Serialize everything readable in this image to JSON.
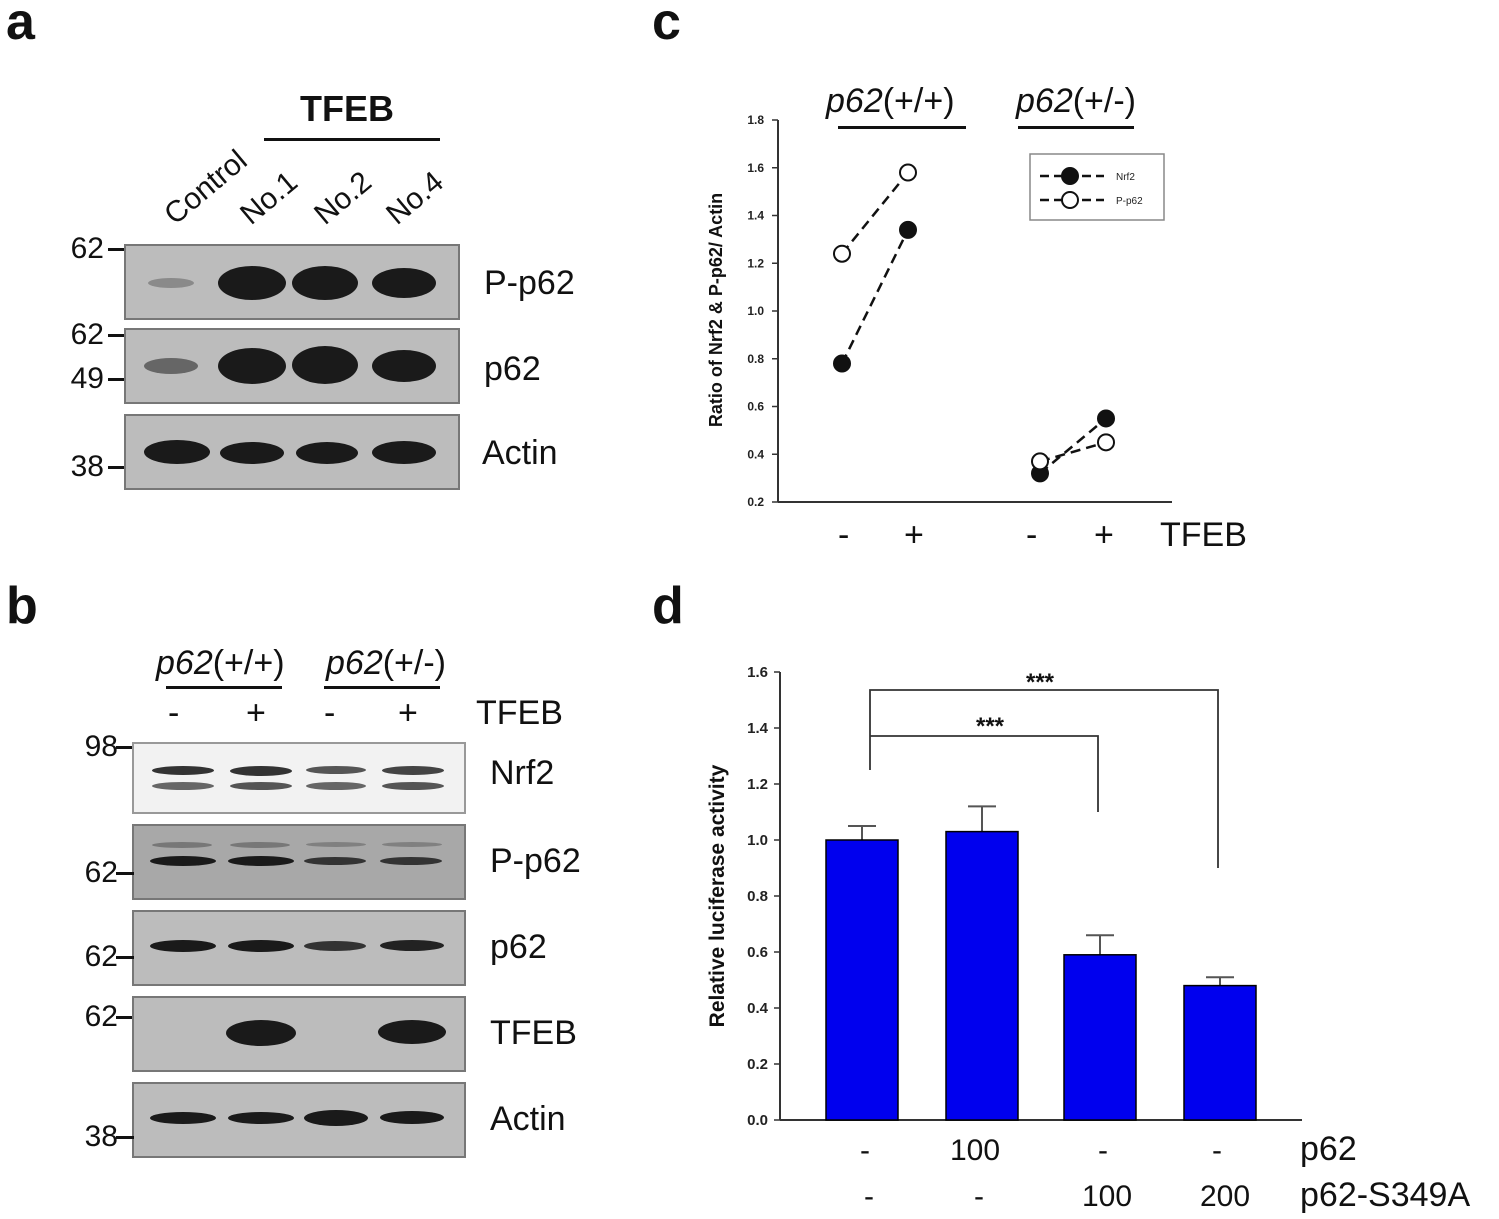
{
  "panel_a": {
    "letter": "a",
    "group_label": "TFEB",
    "lanes": [
      "Control",
      "No.1",
      "No.2",
      "No.4"
    ],
    "mw_markers": [
      "62",
      "62",
      "49",
      "38"
    ],
    "blots": [
      {
        "name": "P-p62",
        "label": "P-p62",
        "intensity": [
          0.15,
          1.0,
          1.0,
          0.9
        ]
      },
      {
        "name": "p62",
        "label": "p62",
        "intensity": [
          0.35,
          0.95,
          1.0,
          0.85
        ]
      },
      {
        "name": "Actin",
        "label": "Actin",
        "intensity": [
          1.0,
          0.95,
          0.95,
          0.95
        ]
      }
    ]
  },
  "panel_b": {
    "letter": "b",
    "genotype_1_italic": "p62",
    "genotype_1_suffix": "(+/+)",
    "genotype_2_italic": "p62",
    "genotype_2_suffix": "(+/-)",
    "treatment_signs": [
      "-",
      "+",
      "-",
      "+"
    ],
    "treatment_label": "TFEB",
    "asterisk": "*",
    "mw_markers": [
      "98",
      "62",
      "62",
      "62",
      "38"
    ],
    "blots": [
      {
        "name": "Nrf2",
        "label": "Nrf2"
      },
      {
        "name": "P-p62",
        "label": "P-p62"
      },
      {
        "name": "p62",
        "label": "p62"
      },
      {
        "name": "TFEB",
        "label": "TFEB"
      },
      {
        "name": "Actin",
        "label": "Actin"
      }
    ]
  },
  "panel_c": {
    "letter": "c",
    "genotype_1_italic": "p62",
    "genotype_1_suffix": "(+/+)",
    "genotype_2_italic": "p62",
    "genotype_2_suffix": "(+/-)",
    "x_signs": [
      "-",
      "+",
      "-",
      "+"
    ],
    "x_group_label": "TFEB",
    "chart_data": {
      "type": "line",
      "ylabel": "Ratio of Nrf2 & P-p62/ Actin",
      "ylim": [
        0.2,
        1.8
      ],
      "yticks": [
        "0.2",
        "0.4",
        "0.6",
        "0.8",
        "1.0",
        "1.2",
        "1.4",
        "1.6",
        "1.8"
      ],
      "legend_position": "top-right",
      "series": [
        {
          "name": "Nrf2",
          "marker": "filled-circle",
          "line": "dashed",
          "values": [
            [
              0.78,
              1.34
            ],
            [
              0.32,
              0.55
            ]
          ]
        },
        {
          "name": "P-p62",
          "marker": "open-circle",
          "line": "dashed",
          "values": [
            [
              1.24,
              1.58
            ],
            [
              0.37,
              0.45
            ]
          ]
        }
      ]
    }
  },
  "panel_d": {
    "letter": "d",
    "row1_label": "p62",
    "row1_values": [
      "-",
      "100",
      "-",
      "-"
    ],
    "row2_label": "p62-S349A",
    "row2_values": [
      "-",
      "-",
      "100",
      "200"
    ],
    "sig_1": "***",
    "sig_2": "***",
    "chart_data": {
      "type": "bar",
      "ylabel": "Relative luciferase activity",
      "ylim": [
        0.0,
        1.6
      ],
      "yticks": [
        "0.0",
        "0.2",
        "0.4",
        "0.6",
        "0.8",
        "1.0",
        "1.2",
        "1.4",
        "1.6"
      ],
      "values": [
        1.0,
        1.03,
        0.59,
        0.48
      ],
      "errors": [
        0.05,
        0.09,
        0.07,
        0.03
      ],
      "bar_color": "#0000ee"
    }
  }
}
